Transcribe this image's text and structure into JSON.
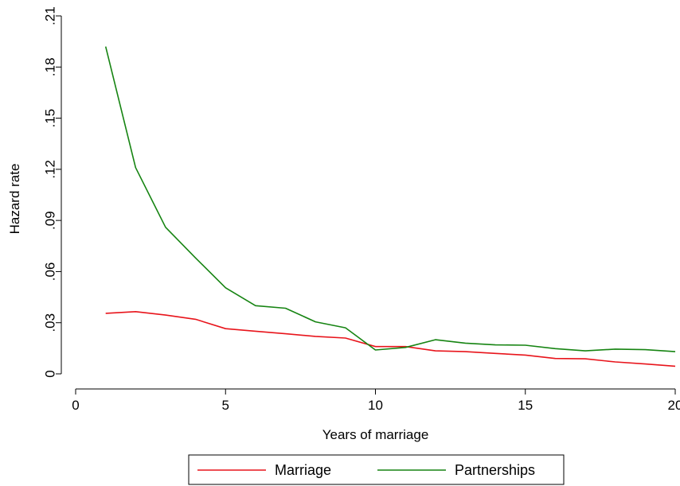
{
  "chart_data": {
    "type": "line",
    "title": "",
    "xlabel": "Years of marriage",
    "ylabel": "Hazard rate",
    "xlim": [
      0,
      20
    ],
    "ylim": [
      0,
      0.21
    ],
    "x_ticks": [
      0,
      5,
      10,
      15,
      20
    ],
    "x_tick_labels": [
      "0",
      "5",
      "10",
      "15",
      "20"
    ],
    "y_ticks": [
      0,
      0.03,
      0.06,
      0.09,
      0.12,
      0.15,
      0.18,
      0.21
    ],
    "y_tick_labels": [
      "0",
      ".03",
      ".06",
      ".09",
      ".12",
      ".15",
      ".18",
      ".21"
    ],
    "grid": false,
    "legend_position": "bottom",
    "x": [
      1,
      2,
      3,
      4,
      5,
      6,
      7,
      8,
      9,
      10,
      11,
      12,
      13,
      14,
      15,
      16,
      17,
      18,
      19,
      20
    ],
    "series": [
      {
        "name": "Marriage",
        "color": "#e8141b",
        "values": [
          0.0355,
          0.0365,
          0.0345,
          0.032,
          0.0265,
          0.025,
          0.0235,
          0.022,
          0.021,
          0.016,
          0.016,
          0.0135,
          0.013,
          0.012,
          0.011,
          0.009,
          0.0088,
          0.007,
          0.0058,
          0.0045
        ]
      },
      {
        "name": "Partnerships",
        "color": "#168412",
        "values": [
          0.192,
          0.121,
          0.086,
          0.068,
          0.0505,
          0.04,
          0.0385,
          0.0305,
          0.027,
          0.014,
          0.0155,
          0.02,
          0.018,
          0.017,
          0.0168,
          0.0148,
          0.0135,
          0.0145,
          0.0142,
          0.013
        ]
      }
    ]
  }
}
